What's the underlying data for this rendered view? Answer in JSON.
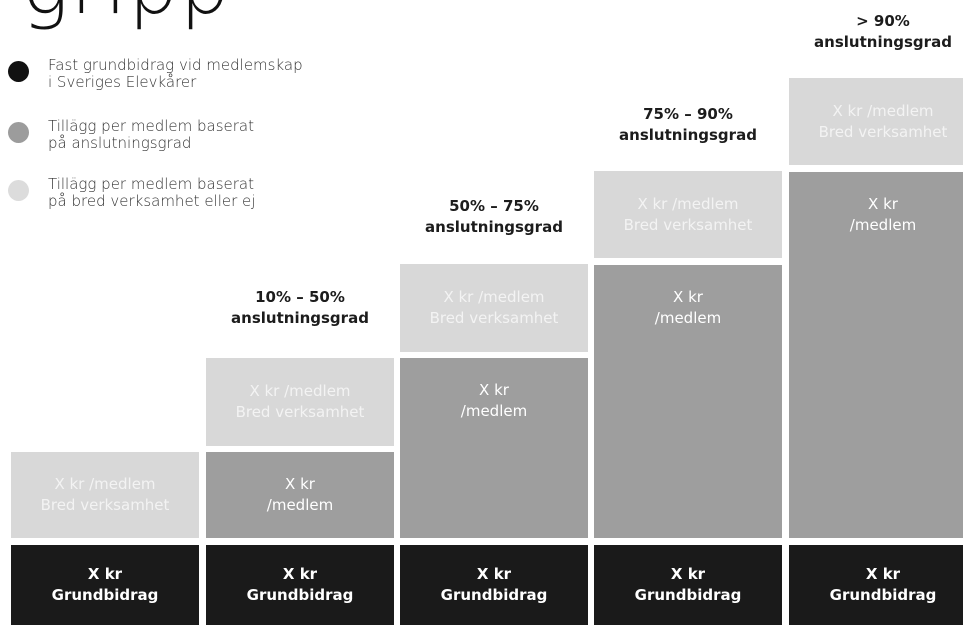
{
  "title_fragment": "gripp",
  "legend": [
    {
      "lines": [
        "Fast grundbidrag vid medlemskap",
        "i Sveriges Elevkårer"
      ],
      "color": "#111111"
    },
    {
      "lines": [
        "Tillägg per medlem baserat",
        "på anslutningsgrad"
      ],
      "color": "#9c9c9c"
    },
    {
      "lines": [
        "Tillägg per medlem baserat",
        "på bred verksamhet eller ej"
      ],
      "color": "#dcdcdc"
    }
  ],
  "colors": {
    "base": "#1a1a1a",
    "member": "#9e9e9e",
    "broad": "#d8d8d8"
  },
  "columns": [
    {
      "header": [],
      "base": [
        "X kr",
        "Grundbidrag"
      ],
      "member": [],
      "broad": [
        "X kr /medlem",
        "Bred verksamhet"
      ]
    },
    {
      "header": [
        "10% – 50%",
        "anslutningsgrad"
      ],
      "base": [
        "X kr",
        "Grundbidrag"
      ],
      "member": [
        "X kr",
        "/medlem"
      ],
      "broad": [
        "X kr /medlem",
        "Bred verksamhet"
      ]
    },
    {
      "header": [
        "50% – 75%",
        "anslutningsgrad"
      ],
      "base": [
        "X kr",
        "Grundbidrag"
      ],
      "member": [
        "X kr",
        "/medlem"
      ],
      "broad": [
        "X kr /medlem",
        "Bred verksamhet"
      ]
    },
    {
      "header": [
        "75% – 90%",
        "anslutningsgrad"
      ],
      "base": [
        "X kr",
        "Grundbidrag"
      ],
      "member": [
        "X kr",
        "/medlem"
      ],
      "broad": [
        "X kr /medlem",
        "Bred verksamhet"
      ]
    },
    {
      "header": [
        "> 90%",
        "anslutningsgrad"
      ],
      "base": [
        "X kr",
        "Grundbidrag"
      ],
      "member": [
        "X kr",
        "/medlem"
      ],
      "broad": [
        "X kr /medlem",
        "Bred verksamhet"
      ]
    }
  ]
}
